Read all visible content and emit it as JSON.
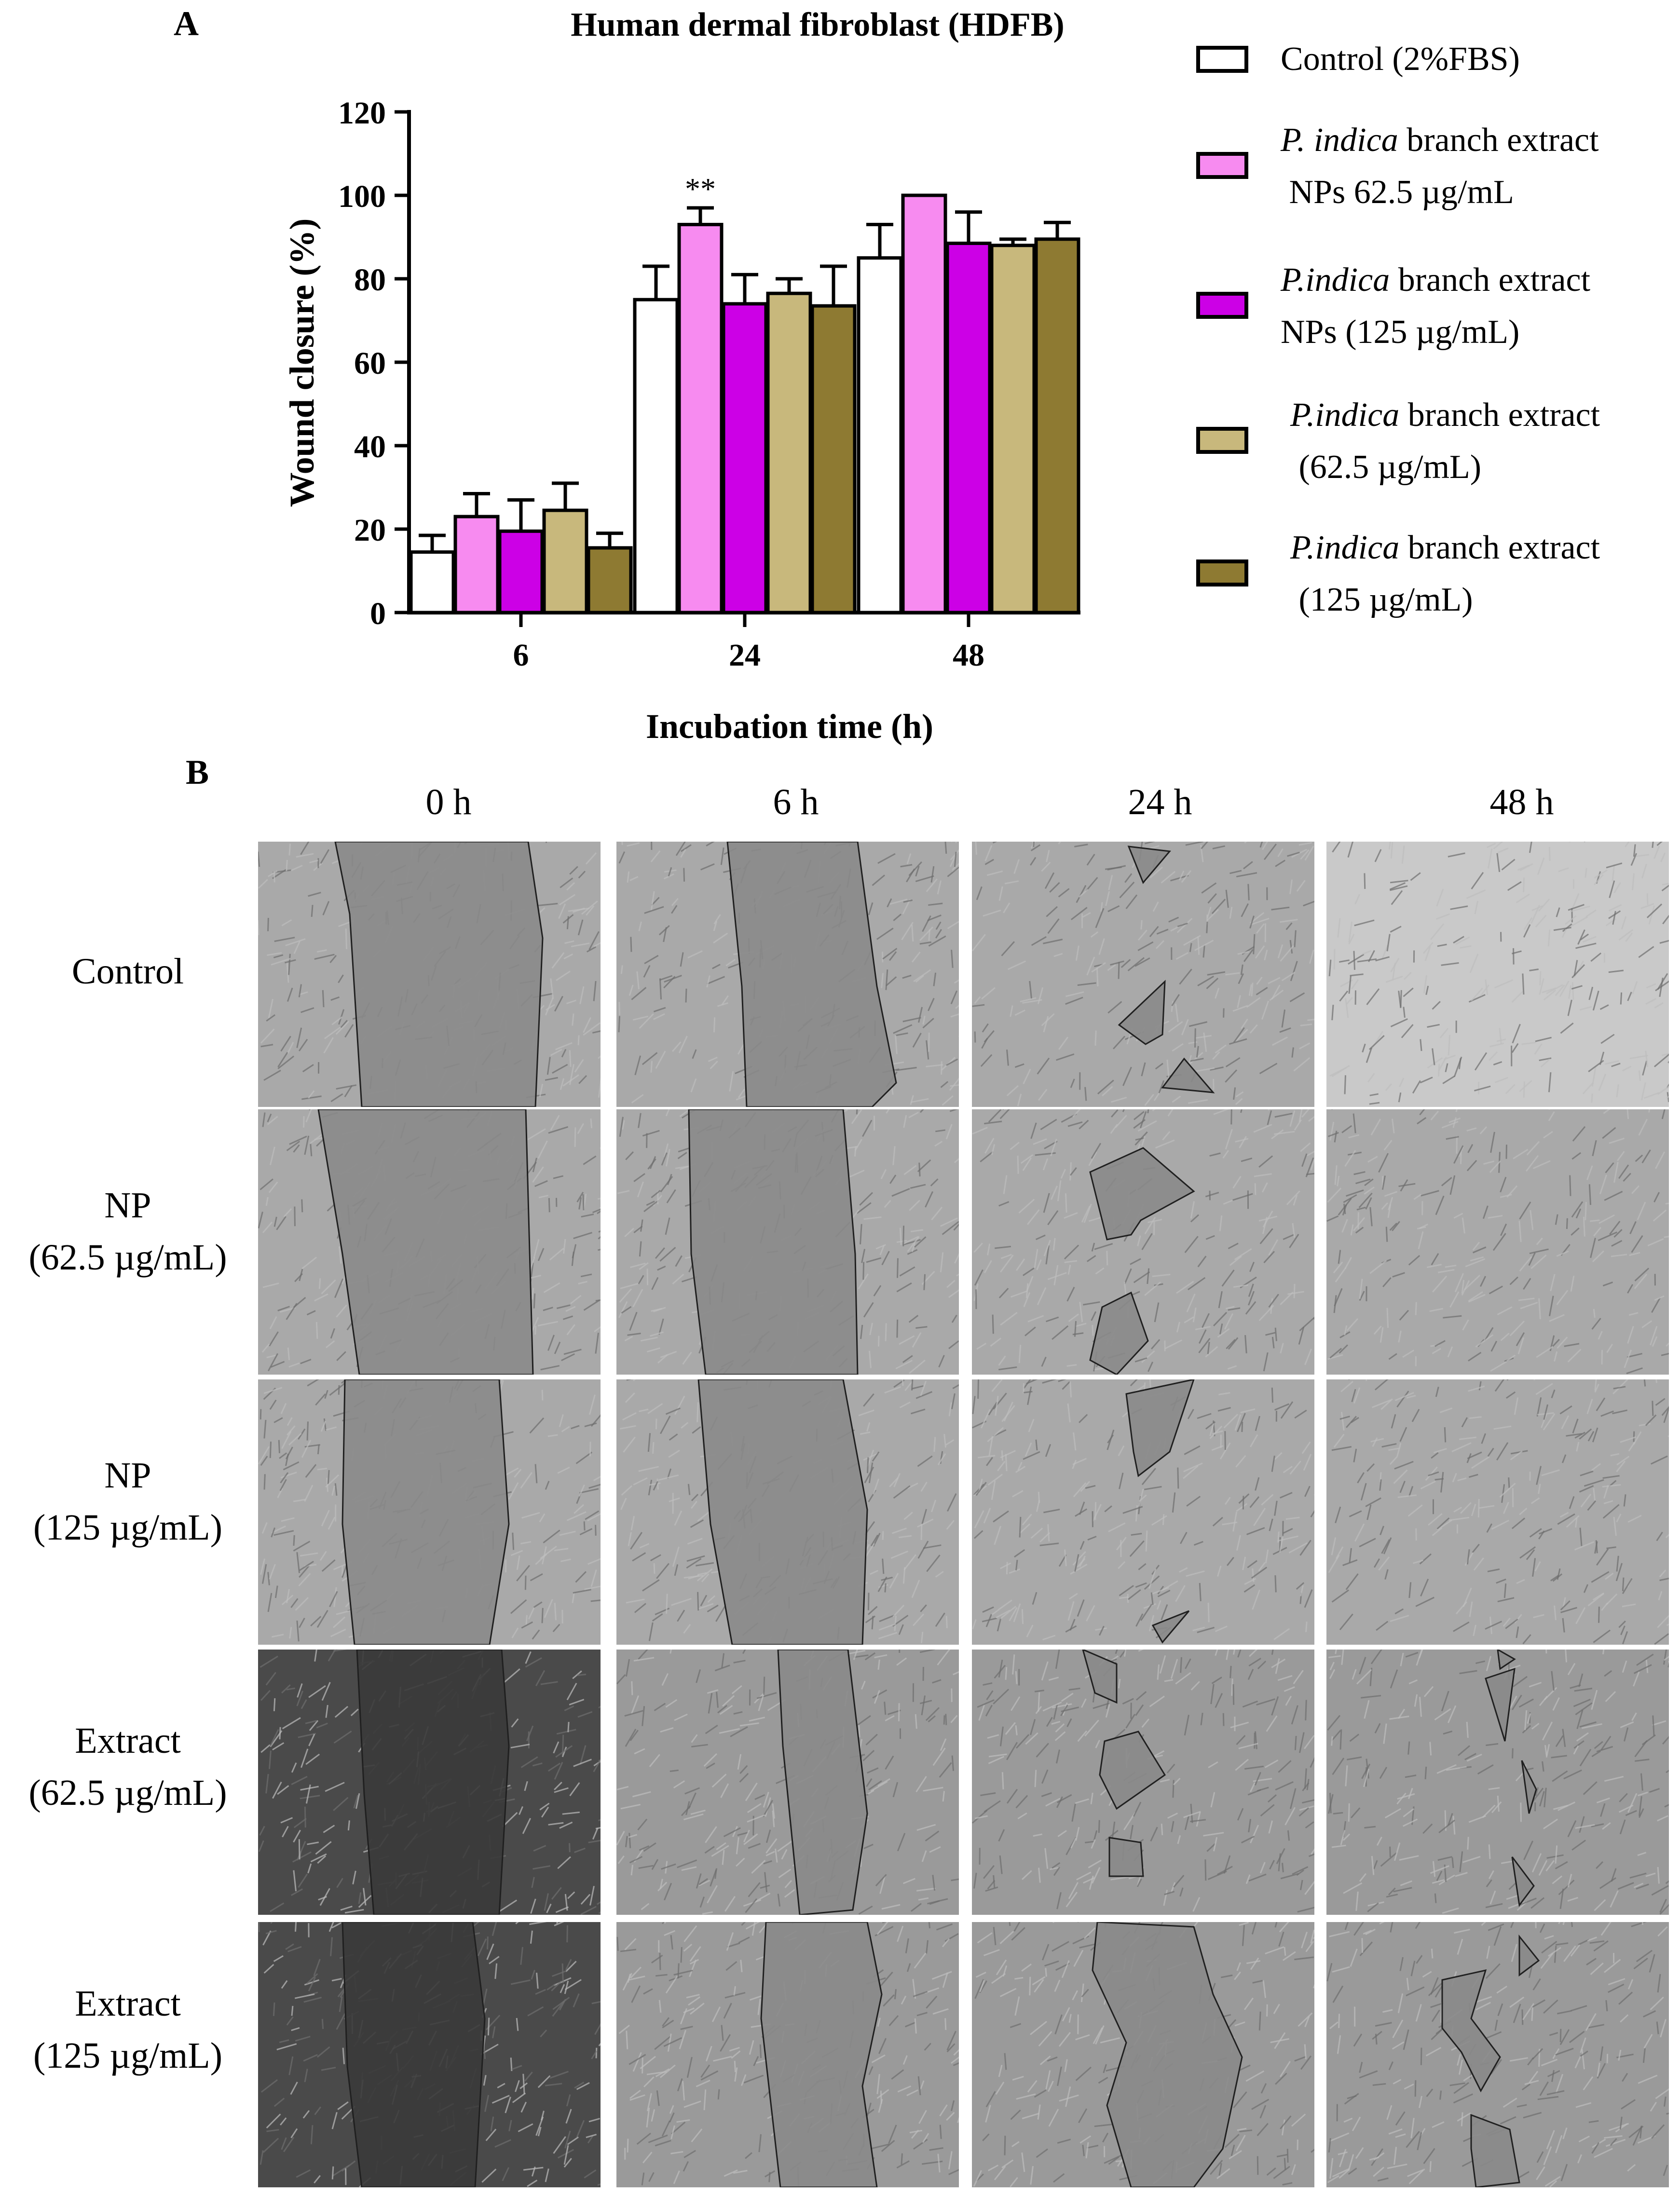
{
  "panel_a_label": "A",
  "panel_b_label": "B",
  "chart_data": {
    "type": "bar",
    "title": "Human dermal fibroblast  (HDFB)",
    "xlabel": "Incubation time (h)",
    "ylabel": "Wound closure (%)",
    "ylim": [
      0,
      120
    ],
    "yticks": [
      0,
      20,
      40,
      60,
      80,
      100,
      120
    ],
    "categories": [
      "6",
      "24",
      "48"
    ],
    "series": [
      {
        "name": "Control (2%FBS)",
        "color": "#ffffff",
        "values": [
          14.5,
          75,
          85
        ],
        "errors": [
          4,
          8,
          8
        ]
      },
      {
        "name": "P. indica branch extract NPs 62.5 µg/mL",
        "color": "#f78bf0",
        "values": [
          23,
          93,
          100
        ],
        "errors": [
          5.5,
          4,
          0
        ]
      },
      {
        "name": "P.indica branch extract NPs (125 µg/mL)",
        "color": "#cc00e6",
        "values": [
          19.5,
          74,
          88.5
        ],
        "errors": [
          7.5,
          7,
          7.5
        ]
      },
      {
        "name": "P.indica branch extract (62.5 µg/mL)",
        "color": "#c8b87c",
        "values": [
          24.5,
          76.5,
          88
        ],
        "errors": [
          6.5,
          3.5,
          1.5
        ]
      },
      {
        "name": "P.indica branch extract (125 µg/mL)",
        "color": "#8e7a32",
        "values": [
          15.5,
          73.5,
          89.5
        ],
        "errors": [
          3.5,
          9.5,
          4
        ]
      }
    ],
    "annotations": [
      {
        "category": "24",
        "series_index": 1,
        "text": "**"
      }
    ],
    "grid": false,
    "legend_position": "right"
  },
  "legend": [
    {
      "line1_italic": "",
      "line1": "Control (2%FBS)",
      "line2": ""
    },
    {
      "line1_italic": "P. indica",
      "line1": " branch extract",
      "line2": "NPs 62.5 µg/mL"
    },
    {
      "line1_italic": "P.indica",
      "line1": " branch extract",
      "line2": "NPs (125 µg/mL)"
    },
    {
      "line1_italic": "P.indica",
      "line1": " branch extract",
      "line2": "(62.5 µg/mL)"
    },
    {
      "line1_italic": "P.indica",
      "line1": " branch extract",
      "line2": "(125 µg/mL)"
    }
  ],
  "panel_b": {
    "columns": [
      "0 h",
      "6 h",
      "24 h",
      "48 h"
    ],
    "rows": [
      {
        "line1": "Control",
        "line2": ""
      },
      {
        "line1": "NP",
        "line2": "(62.5 µg/mL)"
      },
      {
        "line1": "NP",
        "line2": "(125 µg/mL)"
      },
      {
        "line1": "Extract",
        "line2": "(62.5 µg/mL)"
      },
      {
        "line1": "Extract",
        "line2": "(125 µg/mL)"
      }
    ],
    "tile_colors": {
      "cells_light": "#bdbdbd",
      "cells_dark": "#6e6e6e",
      "wound_fill": "#8a8a8a"
    }
  }
}
